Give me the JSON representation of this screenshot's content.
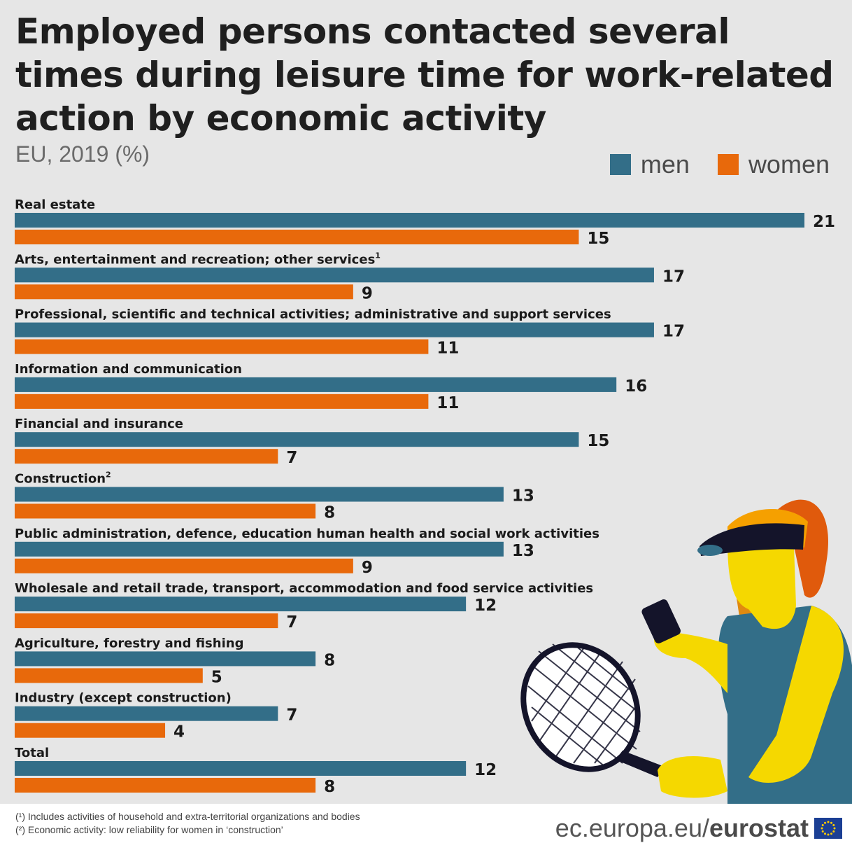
{
  "title": "Employed persons contacted several times during leisure time for work-related action by economic activity",
  "subtitle": "EU, 2019 (%)",
  "legend": {
    "men": "men",
    "women": "women"
  },
  "colors": {
    "men": "#336e88",
    "women": "#e8690b",
    "background": "#e6e6e6"
  },
  "chart_data": {
    "type": "bar",
    "orientation": "horizontal",
    "categories": [
      "Real estate",
      "Arts, entertainment and recreation; other services",
      "Professional, scientific and technical activities; administrative and support services",
      "Information and communication",
      "Financial and insurance",
      "Construction",
      "Public administration, defence, education human health and social work activities",
      "Wholesale and retail trade, transport, accommodation and food service activities",
      "Agriculture, forestry and fishing",
      "Industry (except construction)",
      "Total"
    ],
    "category_footnotes": [
      "",
      "1",
      "",
      "",
      "",
      "2",
      "",
      "",
      "",
      "",
      ""
    ],
    "series": [
      {
        "name": "men",
        "values": [
          21,
          17,
          17,
          16,
          15,
          13,
          13,
          12,
          8,
          7,
          12
        ]
      },
      {
        "name": "women",
        "values": [
          15,
          9,
          11,
          11,
          7,
          8,
          9,
          7,
          5,
          4,
          8
        ]
      }
    ],
    "xlim": [
      0,
      21
    ],
    "grid": false,
    "legend_position": "top-right",
    "data_labels": true
  },
  "footnotes": {
    "note1": "(¹) Includes activities of household and extra-territorial organizations and bodies",
    "note2": "(²) Economic activity: low reliability for women in ‘construction’"
  },
  "source": {
    "domain": "ec.europa.eu/",
    "brand": "eurostat"
  }
}
